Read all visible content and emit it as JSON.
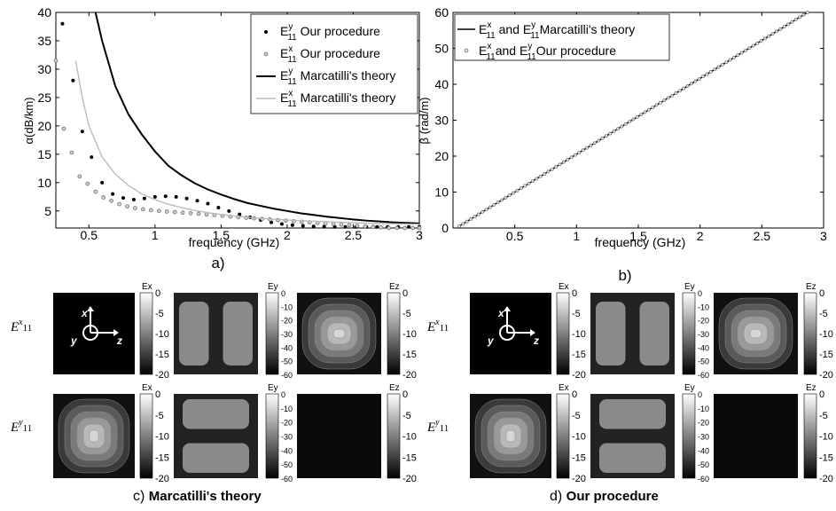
{
  "chart_data": [
    {
      "type": "scatter",
      "panel_label": "a)",
      "xlabel": "frequency (GHz)",
      "ylabel": "α(dB/km)",
      "xlim": [
        0.25,
        3.0
      ],
      "ylim": [
        2,
        40
      ],
      "xticks": [
        "0.5",
        "1",
        "1.5",
        "2",
        "2.5",
        "3"
      ],
      "yticks": [
        "5",
        "10",
        "15",
        "20",
        "25",
        "30",
        "35",
        "40"
      ],
      "grid": false,
      "legend_position": "top-right",
      "legend": [
        {
          "mode": "E",
          "sub": "11",
          "sup": "y",
          "text": " Our procedure"
        },
        {
          "mode": "E",
          "sub": "11",
          "sup": "x",
          "text": " Our procedure"
        },
        {
          "mode": "E",
          "sub": "11",
          "sup": "y",
          "text": " Marcatilli's theory"
        },
        {
          "mode": "E",
          "sub": "11",
          "sup": "x",
          "text": " Marcatilli's theory"
        }
      ],
      "series": [
        {
          "style": "dots-black",
          "x": [
            0.3,
            0.38,
            0.45,
            0.52,
            0.6,
            0.68,
            0.76,
            0.84,
            0.92,
            1.0,
            1.08,
            1.16,
            1.24,
            1.32,
            1.4,
            1.48,
            1.56,
            1.64,
            1.72,
            1.8,
            1.88,
            1.96,
            2.04,
            2.12,
            2.2,
            2.28,
            2.36,
            2.44,
            2.52,
            2.6,
            2.68,
            2.76,
            2.84,
            2.92,
            3.0
          ],
          "y": [
            38,
            28,
            19,
            14.5,
            10,
            8,
            7.3,
            7,
            7.2,
            7.5,
            7.6,
            7.5,
            7.2,
            6.8,
            6.3,
            5.6,
            5,
            4.4,
            3.9,
            3.4,
            3,
            2.7,
            2.5,
            2.4,
            2.3,
            2.25,
            2.2,
            2.2,
            2.2,
            2.2,
            2.2,
            2.2,
            2.2,
            2.2,
            2.2
          ]
        },
        {
          "style": "dots-grey",
          "x": [
            0.25,
            0.31,
            0.37,
            0.43,
            0.49,
            0.55,
            0.61,
            0.67,
            0.73,
            0.79,
            0.85,
            0.91,
            0.97,
            1.03,
            1.09,
            1.15,
            1.21,
            1.27,
            1.33,
            1.39,
            1.45,
            1.51,
            1.57,
            1.63,
            1.69,
            1.75,
            1.81,
            1.87,
            1.93,
            1.99,
            2.05,
            2.11,
            2.17,
            2.23,
            2.29,
            2.35,
            2.41,
            2.47,
            2.53,
            2.59,
            2.65,
            2.71,
            2.77,
            2.83,
            2.89,
            2.95,
            3.0
          ],
          "y": [
            31.5,
            19.5,
            15.3,
            11.1,
            9.8,
            8.4,
            7.4,
            6.8,
            6.2,
            5.8,
            5.5,
            5.3,
            5.15,
            5,
            4.9,
            4.8,
            4.7,
            4.6,
            4.5,
            4.4,
            4.3,
            4.15,
            4,
            3.9,
            3.8,
            3.7,
            3.6,
            3.5,
            3.4,
            3.3,
            3.2,
            3.1,
            3,
            2.9,
            2.8,
            2.7,
            2.6,
            2.5,
            2.4,
            2.3,
            2.2,
            2.1,
            2,
            2,
            2,
            2,
            2
          ]
        },
        {
          "style": "line-black",
          "x": [
            0.55,
            0.6,
            0.7,
            0.8,
            0.9,
            1.0,
            1.1,
            1.2,
            1.3,
            1.4,
            1.5,
            1.6,
            1.7,
            1.8,
            1.9,
            2.0,
            2.1,
            2.2,
            2.3,
            2.4,
            2.5,
            2.6,
            2.7,
            2.8,
            2.9,
            3.0
          ],
          "y": [
            40,
            35,
            27,
            22,
            18.5,
            15.5,
            13,
            11.3,
            9.9,
            8.8,
            7.9,
            7.1,
            6.4,
            5.9,
            5.4,
            5.0,
            4.6,
            4.3,
            4.0,
            3.75,
            3.5,
            3.3,
            3.15,
            3.0,
            2.9,
            2.8
          ]
        },
        {
          "style": "line-grey",
          "x": [
            0.4,
            0.45,
            0.5,
            0.6,
            0.7,
            0.8,
            0.9,
            1.0,
            1.1,
            1.2,
            1.3,
            1.4,
            1.5,
            1.6,
            1.8,
            2.0,
            2.2,
            2.4,
            2.6,
            2.8,
            3.0
          ],
          "y": [
            31.5,
            25,
            20,
            14.5,
            11.5,
            9.5,
            8.0,
            7.0,
            6.2,
            5.6,
            5.1,
            4.7,
            4.4,
            4.1,
            3.7,
            3.4,
            3.2,
            3.0,
            2.85,
            2.75,
            2.65
          ]
        }
      ]
    },
    {
      "type": "line",
      "panel_label": "b)",
      "xlabel": "frequency (GHz)",
      "ylabel": "β (rad/m)",
      "xlim": [
        0,
        3.0
      ],
      "ylim": [
        0,
        60
      ],
      "xticks": [
        "0.5",
        "1",
        "1.5",
        "2",
        "2.5",
        "3"
      ],
      "yticks": [
        "0",
        "10",
        "20",
        "30",
        "40",
        "50",
        "60"
      ],
      "grid": false,
      "legend_position": "top-left",
      "legend": [
        {
          "label": "E11x and E11y Marcatilli's theory"
        },
        {
          "label": "E11x and E11y Our procedure"
        }
      ],
      "series": [
        {
          "style": "line-black",
          "x": [
            0.05,
            2.87
          ],
          "y": [
            0.5,
            60
          ]
        },
        {
          "style": "dots-grey",
          "x_start": 0.05,
          "x_end": 2.87,
          "y_start": 0.5,
          "y_end": 60
        }
      ]
    }
  ],
  "panels": {
    "c_label": "c)",
    "c_title": "Marcatilli's theory",
    "d_label": "d)",
    "d_title": "Our procedure",
    "row_labels": [
      "E^x_11",
      "E^y_11"
    ],
    "axis_labels": {
      "x": "x",
      "y": "y",
      "z": "z"
    },
    "field_names": [
      "Ex",
      "Ey",
      "Ez"
    ],
    "colorbar_ticks_20": [
      "0",
      "-5",
      "-10",
      "-15",
      "-20"
    ],
    "colorbar_ticks_60": [
      "0",
      "-10",
      "-20",
      "-30",
      "-40",
      "-50",
      "-60"
    ]
  }
}
